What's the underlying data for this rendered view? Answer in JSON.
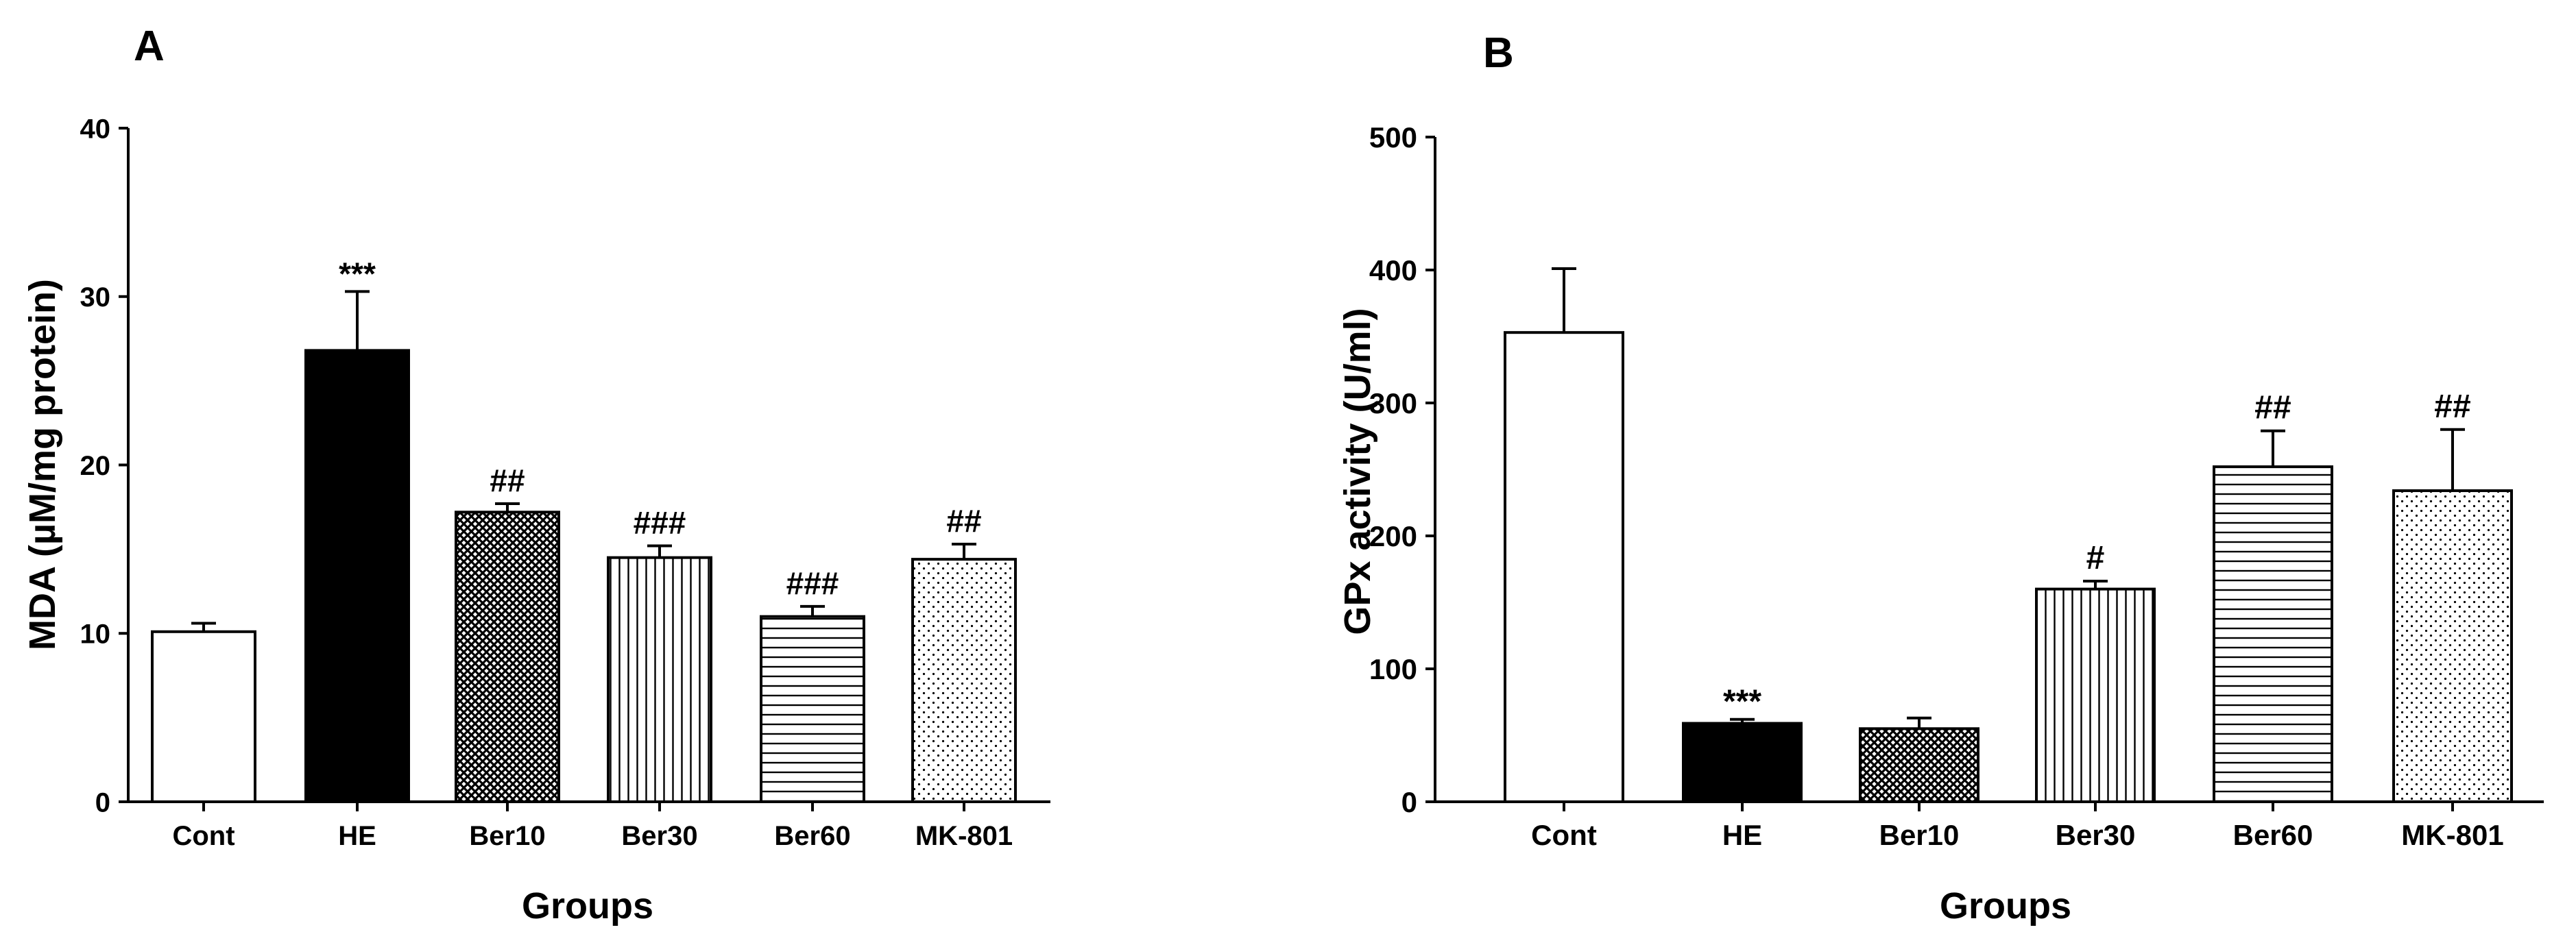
{
  "chart_data": [
    {
      "panel_label": "A",
      "type": "bar",
      "xlabel": "Groups",
      "ylabel": "MDA (µM/mg protein)",
      "ylim": [
        0,
        40
      ],
      "yticks": [
        "0",
        "10",
        "20",
        "30",
        "40"
      ],
      "grid": false,
      "categories": [
        "Cont",
        "HE",
        "Ber10",
        "Ber30",
        "Ber60",
        "MK-801"
      ],
      "values": [
        10.1,
        26.8,
        17.2,
        14.5,
        11.0,
        14.4
      ],
      "error_upper": [
        0.5,
        3.5,
        0.5,
        0.7,
        0.6,
        0.9
      ],
      "annotations": [
        "",
        "***",
        "##",
        "###",
        "###",
        "##"
      ],
      "fills": [
        "white",
        "black",
        "crosshatch",
        "vertical-lines",
        "horizontal-lines",
        "dots"
      ]
    },
    {
      "panel_label": "B",
      "type": "bar",
      "xlabel": "Groups",
      "ylabel": "GPx activity (U/ml)",
      "ylim": [
        0,
        500
      ],
      "yticks": [
        "0",
        "100",
        "200",
        "300",
        "400",
        "500"
      ],
      "grid": false,
      "categories": [
        "Cont",
        "HE",
        "Ber10",
        "Ber30",
        "Ber60",
        "MK-801"
      ],
      "values": [
        353,
        59,
        55,
        160,
        252,
        234
      ],
      "error_upper": [
        48,
        3,
        8,
        6,
        27,
        46
      ],
      "annotations": [
        "",
        "***",
        "",
        "#",
        "##",
        "##"
      ],
      "fills": [
        "white",
        "black",
        "crosshatch",
        "vertical-lines",
        "horizontal-lines",
        "dots"
      ]
    }
  ]
}
